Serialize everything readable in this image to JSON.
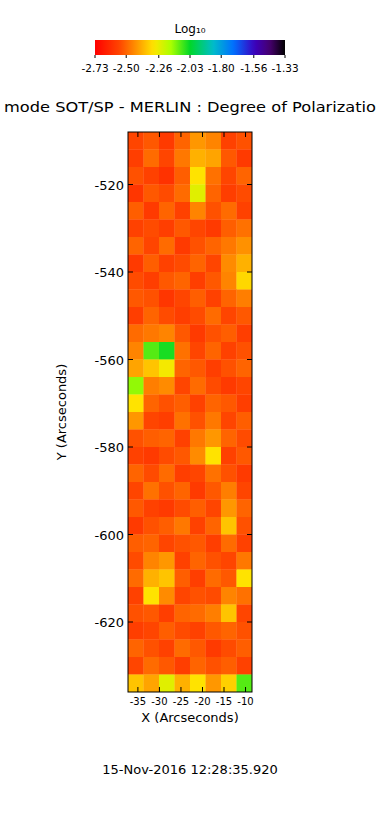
{
  "chart_data": {
    "type": "heatmap",
    "title": "mode SOT/SP - MERLIN : Degree of Polarizatio",
    "xlabel": "X (Arcseconds)",
    "ylabel": "Y (Arcseconds)",
    "annotations": [
      "15-Nov-2016 12:28:35.920"
    ],
    "xlim": [
      -37.3,
      -8.5
    ],
    "ylim": [
      -636,
      -508
    ],
    "xticks": [
      -35,
      -30,
      -25,
      -20,
      -15,
      -10
    ],
    "yticks": [
      -520,
      -540,
      -560,
      -580,
      -600,
      -620
    ],
    "x": [
      -35.5,
      -31.9,
      -28.3,
      -24.7,
      -21.1,
      -17.5,
      -13.9,
      -10.3
    ],
    "y": [
      -510,
      -514,
      -518,
      -522,
      -526,
      -530,
      -534,
      -538,
      -542,
      -546,
      -550,
      -554,
      -558,
      -562,
      -566,
      -570,
      -574,
      -578,
      -582,
      -586,
      -590,
      -594,
      -598,
      -602,
      -606,
      -610,
      -614,
      -618,
      -622,
      -626,
      -630,
      -634
    ],
    "z": [
      [
        -2.55,
        -2.52,
        -2.58,
        -2.5,
        -2.42,
        -2.45,
        -2.56,
        -2.53
      ],
      [
        -2.57,
        -2.49,
        -2.55,
        -2.47,
        -2.38,
        -2.4,
        -2.52,
        -2.58
      ],
      [
        -2.53,
        -2.56,
        -2.6,
        -2.51,
        -2.3,
        -2.48,
        -2.55,
        -2.5
      ],
      [
        -2.59,
        -2.52,
        -2.54,
        -2.49,
        -2.25,
        -2.5,
        -2.57,
        -2.54
      ],
      [
        -2.51,
        -2.58,
        -2.5,
        -2.56,
        -2.45,
        -2.53,
        -2.49,
        -2.56
      ],
      [
        -2.56,
        -2.54,
        -2.57,
        -2.52,
        -2.55,
        -2.58,
        -2.51,
        -2.48
      ],
      [
        -2.5,
        -2.55,
        -2.49,
        -2.58,
        -2.53,
        -2.5,
        -2.47,
        -2.43
      ],
      [
        -2.58,
        -2.51,
        -2.56,
        -2.54,
        -2.5,
        -2.55,
        -2.44,
        -2.38
      ],
      [
        -2.54,
        -2.57,
        -2.52,
        -2.5,
        -2.57,
        -2.52,
        -2.45,
        -2.32
      ],
      [
        -2.52,
        -2.53,
        -2.59,
        -2.55,
        -2.51,
        -2.56,
        -2.5,
        -2.46
      ],
      [
        -2.57,
        -2.5,
        -2.54,
        -2.57,
        -2.54,
        -2.49,
        -2.55,
        -2.52
      ],
      [
        -2.49,
        -2.47,
        -2.45,
        -2.52,
        -2.58,
        -2.53,
        -2.51,
        -2.57
      ],
      [
        -2.45,
        -2.1,
        -2.05,
        -2.48,
        -2.55,
        -2.5,
        -2.56,
        -2.53
      ],
      [
        -2.4,
        -2.35,
        -2.28,
        -2.5,
        -2.52,
        -2.57,
        -2.53,
        -2.5
      ],
      [
        -2.15,
        -2.46,
        -2.44,
        -2.55,
        -2.49,
        -2.54,
        -2.58,
        -2.55
      ],
      [
        -2.3,
        -2.5,
        -2.53,
        -2.51,
        -2.56,
        -2.5,
        -2.52,
        -2.57
      ],
      [
        -2.42,
        -2.55,
        -2.57,
        -2.48,
        -2.53,
        -2.47,
        -2.55,
        -2.51
      ],
      [
        -2.53,
        -2.51,
        -2.5,
        -2.56,
        -2.47,
        -2.42,
        -2.5,
        -2.54
      ],
      [
        -2.56,
        -2.58,
        -2.54,
        -2.52,
        -2.44,
        -2.3,
        -2.56,
        -2.52
      ],
      [
        -2.5,
        -2.54,
        -2.49,
        -2.57,
        -2.55,
        -2.48,
        -2.53,
        -2.58
      ],
      [
        -2.55,
        -2.48,
        -2.53,
        -2.5,
        -2.58,
        -2.52,
        -2.46,
        -2.55
      ],
      [
        -2.52,
        -2.56,
        -2.58,
        -2.54,
        -2.51,
        -2.55,
        -2.42,
        -2.5
      ],
      [
        -2.58,
        -2.53,
        -2.51,
        -2.47,
        -2.56,
        -2.5,
        -2.35,
        -2.53
      ],
      [
        -2.51,
        -2.5,
        -2.55,
        -2.53,
        -2.52,
        -2.57,
        -2.49,
        -2.56
      ],
      [
        -2.54,
        -2.45,
        -2.42,
        -2.56,
        -2.5,
        -2.53,
        -2.55,
        -2.47
      ],
      [
        -2.49,
        -2.38,
        -2.35,
        -2.51,
        -2.57,
        -2.49,
        -2.52,
        -2.3
      ],
      [
        -2.56,
        -2.3,
        -2.44,
        -2.55,
        -2.53,
        -2.54,
        -2.45,
        -2.48
      ],
      [
        -2.53,
        -2.52,
        -2.57,
        -2.5,
        -2.49,
        -2.46,
        -2.35,
        -2.55
      ],
      [
        -2.57,
        -2.55,
        -2.51,
        -2.54,
        -2.56,
        -2.52,
        -2.5,
        -2.53
      ],
      [
        -2.5,
        -2.53,
        -2.56,
        -2.49,
        -2.52,
        -2.58,
        -2.54,
        -2.51
      ],
      [
        -2.55,
        -2.49,
        -2.52,
        -2.57,
        -2.5,
        -2.53,
        -2.51,
        -2.56
      ],
      [
        -2.35,
        -2.4,
        -2.25,
        -2.38,
        -2.3,
        -2.42,
        -2.33,
        -2.1
      ]
    ],
    "colorbar": {
      "title": "Log₁₀",
      "range": [
        -2.73,
        -1.33
      ],
      "ticks": [
        -2.73,
        {
          "value": -2.5,
          "label": "-2.50"
        },
        -2.26,
        -2.03,
        {
          "value": -1.8,
          "label": "-1.80"
        },
        -1.56,
        -1.33
      ]
    }
  }
}
